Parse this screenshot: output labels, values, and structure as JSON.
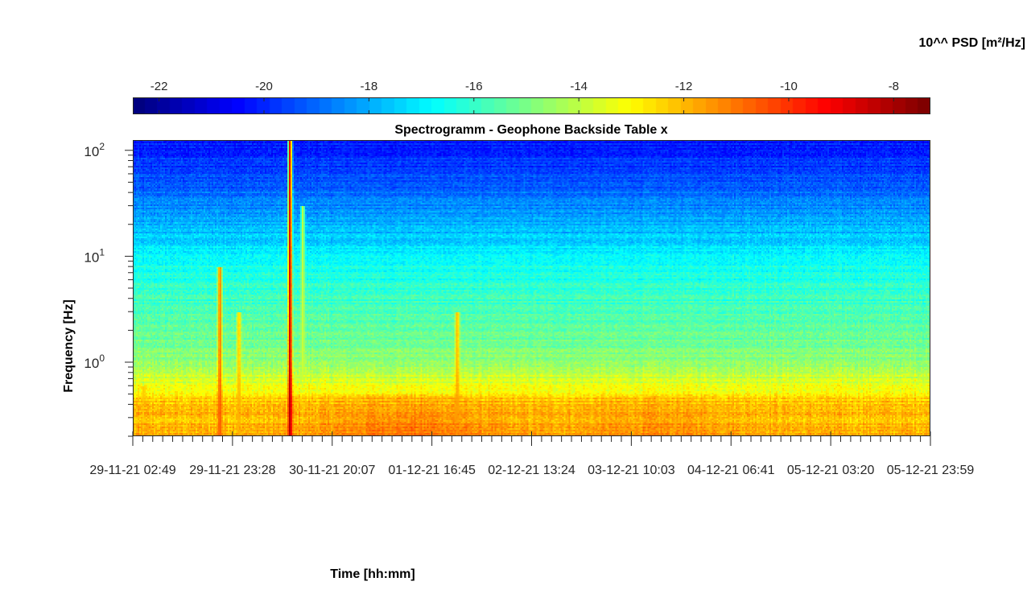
{
  "chart_data": {
    "type": "heatmap",
    "title": "Spectrogramm - Geophone Backside Table x",
    "xlabel": "Time [hh:mm]",
    "ylabel": "Frequency [Hz]",
    "yscale": "log",
    "ylim": [
      0.2,
      125
    ],
    "x_tick_labels": [
      "29-11-21 02:49",
      "29-11-21 23:28",
      "30-11-21 20:07",
      "01-12-21 16:45",
      "02-12-21 13:24",
      "03-12-21 10:03",
      "04-12-21 06:41",
      "05-12-21 03:20",
      "05-12-21 23:59"
    ],
    "y_ticks": [
      {
        "exp": "0",
        "value": 1
      },
      {
        "exp": "1",
        "value": 10
      },
      {
        "exp": "2",
        "value": 100
      }
    ],
    "y_tick_base": "10",
    "colorbar": {
      "label": "10^^ PSD [m²/Hz]",
      "range": [
        -22.5,
        -7.3
      ],
      "colormap": "jet",
      "ticks": [
        {
          "label": "-22",
          "value": -22
        },
        {
          "label": "-20",
          "value": -20
        },
        {
          "label": "-18",
          "value": -18
        },
        {
          "label": "-16",
          "value": -16
        },
        {
          "label": "-14",
          "value": -14
        },
        {
          "label": "-12",
          "value": -12
        },
        {
          "label": "-10",
          "value": -10
        },
        {
          "label": "-8",
          "value": -8
        }
      ]
    },
    "psd_profile_by_frequency": [
      {
        "f": 0.2,
        "log_psd": -11.8
      },
      {
        "f": 0.3,
        "log_psd": -12.0
      },
      {
        "f": 0.45,
        "log_psd": -12.3
      },
      {
        "f": 0.55,
        "log_psd": -13.2
      },
      {
        "f": 0.8,
        "log_psd": -14.0
      },
      {
        "f": 1.0,
        "log_psd": -14.6
      },
      {
        "f": 1.5,
        "log_psd": -15.2
      },
      {
        "f": 2.5,
        "log_psd": -15.6
      },
      {
        "f": 4.0,
        "log_psd": -16.0
      },
      {
        "f": 6.0,
        "log_psd": -16.3
      },
      {
        "f": 10.0,
        "log_psd": -16.8
      },
      {
        "f": 15.0,
        "log_psd": -17.6
      },
      {
        "f": 25.0,
        "log_psd": -18.3
      },
      {
        "f": 40.0,
        "log_psd": -19.0
      },
      {
        "f": 70.0,
        "log_psd": -19.8
      },
      {
        "f": 125.0,
        "log_psd": -20.2
      }
    ],
    "events": [
      {
        "x": 0.0125,
        "fmax": 0.6,
        "log_psd": -12.0
      },
      {
        "x": 0.108,
        "fmax": 8.0,
        "log_psd": -10.0
      },
      {
        "x": 0.132,
        "fmax": 3.0,
        "log_psd": -11.5
      },
      {
        "x": 0.196,
        "fmax": 125.0,
        "log_psd": -7.5
      },
      {
        "x": 0.212,
        "fmax": 30.0,
        "log_psd": -13.5
      },
      {
        "x": 0.406,
        "fmax": 3.0,
        "log_psd": -11.2
      }
    ]
  }
}
